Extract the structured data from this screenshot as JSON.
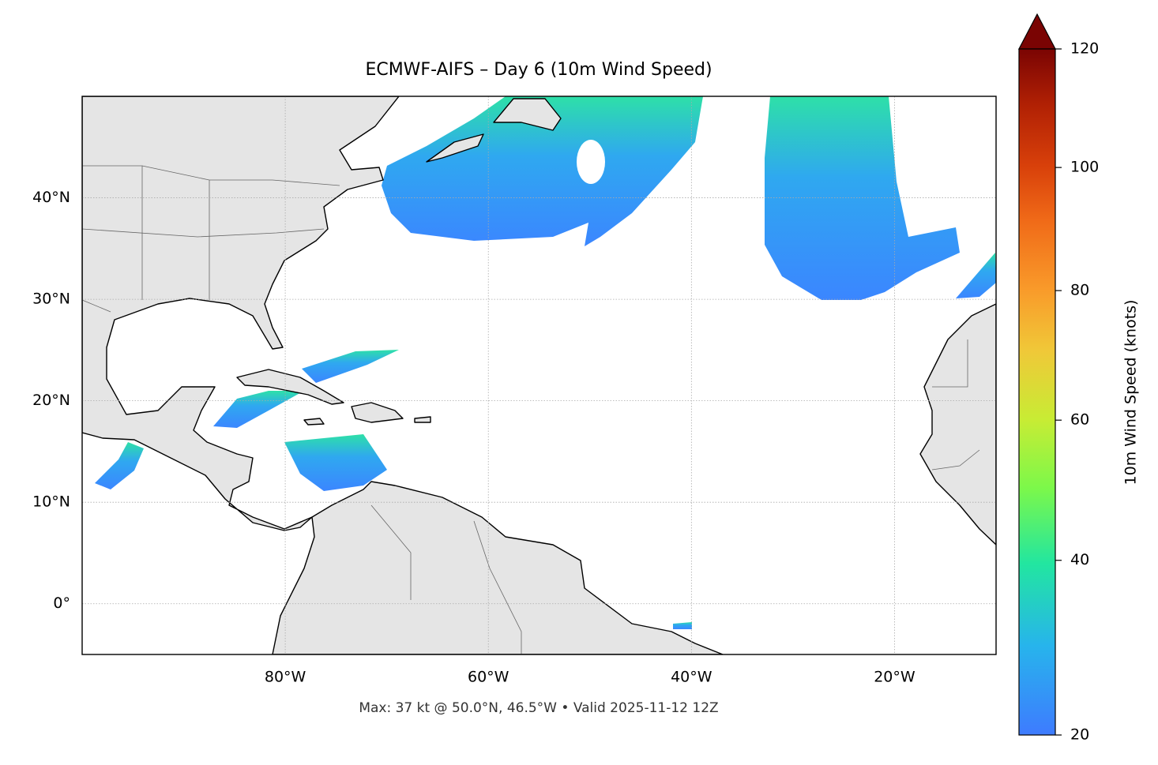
{
  "title": "ECMWF-AIFS – Day 6 (10m Wind Speed)",
  "note": "Max: 37 kt @ 50.0°N, 46.5°W • Valid 2025-11-12 12Z",
  "map": {
    "lonlim": [
      -100,
      -10
    ],
    "latlim": [
      -5,
      50
    ],
    "lonticks": [
      {
        "value": -80,
        "label": "80°W"
      },
      {
        "value": -60,
        "label": "60°W"
      },
      {
        "value": -40,
        "label": "40°W"
      },
      {
        "value": -20,
        "label": "20°W"
      }
    ],
    "latticks": [
      {
        "value": 0,
        "label": "0°"
      },
      {
        "value": 10,
        "label": "10°N"
      },
      {
        "value": 20,
        "label": "20°N"
      },
      {
        "value": 30,
        "label": "30°N"
      },
      {
        "value": 40,
        "label": "40°N"
      }
    ],
    "grid": true
  },
  "colorbar": {
    "label": "10m Wind Speed (knots)",
    "lim": [
      20,
      120
    ],
    "ticks": [
      20,
      40,
      60,
      80,
      100,
      120
    ],
    "norm": "power",
    "gamma": 0.85,
    "extend": "max"
  }
}
